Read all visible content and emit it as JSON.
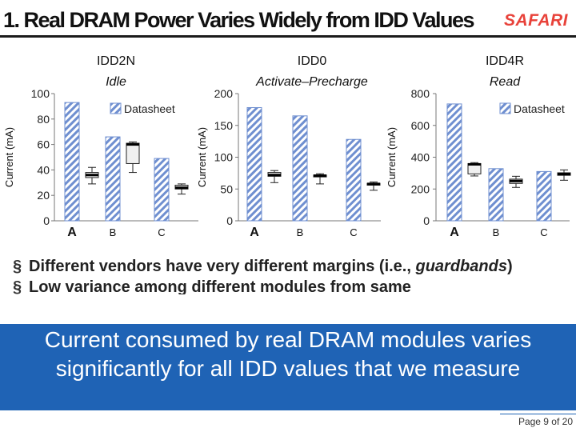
{
  "slide": {
    "title": "1. Real DRAM Power Varies Widely from IDD Values",
    "logo": "SAFARI",
    "bullets": [
      {
        "parts": [
          "Different vendors have very different margins (i.e., ",
          "guardbands",
          ")"
        ]
      },
      {
        "text": "Low variance among different modules from same"
      }
    ],
    "bullet_mark": "§",
    "banner": "Current consumed by real DRAM modules varies significantly for all IDD values that we measure",
    "page": "Page 9 of 20"
  },
  "colors": {
    "bar_stripe": "#6f8fd0",
    "box_fill": "#f0f0f0",
    "banner_bg": "#1f63b5",
    "logo": "#e8423a"
  },
  "chart_data": [
    {
      "type": "bar",
      "title": "IDD2N",
      "subtitle": "Idle",
      "ylabel": "Current (mA)",
      "ylim": [
        0,
        100
      ],
      "yticks": [
        0,
        20,
        40,
        60,
        80,
        100
      ],
      "categories": [
        "A",
        "B",
        "C"
      ],
      "legend": "Datasheet",
      "values": [
        93,
        66,
        49
      ],
      "boxes": [
        {
          "whisker_low": 29,
          "q1": 34,
          "median": 36,
          "q3": 38,
          "whisker_high": 42
        },
        {
          "whisker_low": 38,
          "q1": 45,
          "median": 60,
          "q3": 61,
          "whisker_high": 62
        },
        {
          "whisker_low": 21,
          "q1": 25,
          "median": 26,
          "q3": 28,
          "whisker_high": 29
        }
      ]
    },
    {
      "type": "bar",
      "title": "IDD0",
      "subtitle": "Activate–Precharge",
      "ylabel": "Current (mA)",
      "ylim": [
        0,
        200
      ],
      "yticks": [
        0,
        50,
        100,
        150,
        200
      ],
      "categories": [
        "A",
        "B",
        "C"
      ],
      "legend": "",
      "values": [
        178,
        165,
        128
      ],
      "boxes": [
        {
          "whisker_low": 60,
          "q1": 70,
          "median": 72,
          "q3": 76,
          "whisker_high": 79
        },
        {
          "whisker_low": 58,
          "q1": 69,
          "median": 71,
          "q3": 72,
          "whisker_high": 74
        },
        {
          "whisker_low": 48,
          "q1": 56,
          "median": 58,
          "q3": 59,
          "whisker_high": 61
        }
      ]
    },
    {
      "type": "bar",
      "title": "IDD4R",
      "subtitle": "Read",
      "ylabel": "Current (mA)",
      "ylim": [
        0,
        800
      ],
      "yticks": [
        0,
        200,
        400,
        600,
        800
      ],
      "categories": [
        "A",
        "B",
        "C"
      ],
      "legend": "Datasheet",
      "values": [
        735,
        328,
        310
      ],
      "boxes": [
        {
          "whisker_low": 282,
          "q1": 295,
          "median": 355,
          "q3": 360,
          "whisker_high": 366
        },
        {
          "whisker_low": 210,
          "q1": 235,
          "median": 250,
          "q3": 262,
          "whisker_high": 280
        },
        {
          "whisker_low": 255,
          "q1": 286,
          "median": 294,
          "q3": 302,
          "whisker_high": 320
        }
      ]
    }
  ]
}
